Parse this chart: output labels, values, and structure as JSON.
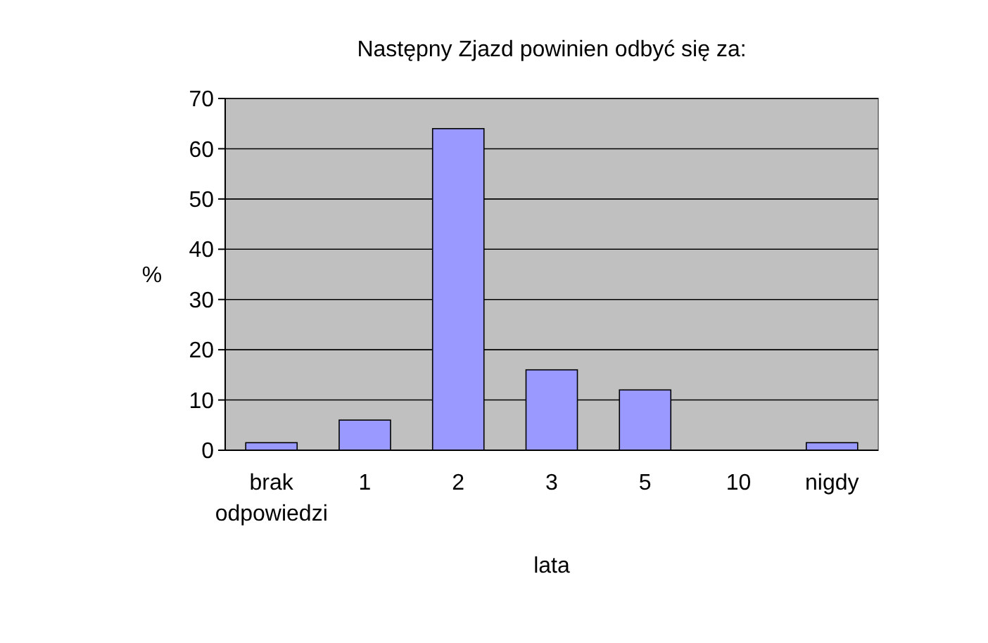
{
  "chart_data": {
    "type": "bar",
    "title": "Następny Zjazd powinien odbyć się za:",
    "xlabel": "lata",
    "ylabel": "%",
    "categories": [
      "brak odpowiedzi",
      "1",
      "2",
      "3",
      "5",
      "10",
      "nigdy"
    ],
    "values": [
      1.5,
      6,
      64,
      16,
      12,
      0,
      1.5
    ],
    "color": "#9999ff",
    "ylim": [
      0,
      70
    ],
    "yticks": [
      0,
      10,
      20,
      30,
      40,
      50,
      60,
      70
    ],
    "grid": "y"
  }
}
